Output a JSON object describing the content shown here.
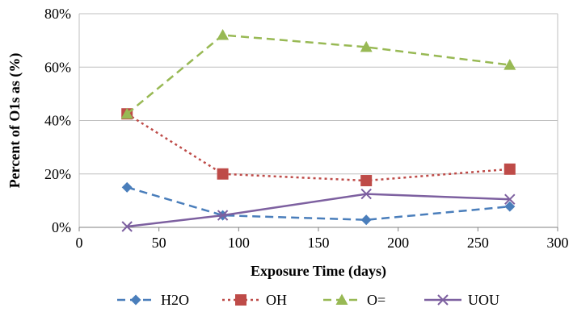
{
  "chart_data": {
    "type": "line",
    "title": "",
    "xlabel": "Exposure Time (days)",
    "ylabel": "Percent of O1s as (%)",
    "xlim": [
      0,
      300
    ],
    "ylim": [
      0,
      80
    ],
    "x_ticks": [
      0,
      50,
      100,
      150,
      200,
      250,
      300
    ],
    "x_tick_labels": [
      "0",
      "50",
      "100",
      "150",
      "200",
      "250",
      "300"
    ],
    "y_ticks": [
      0,
      20,
      40,
      60,
      80
    ],
    "y_tick_labels": [
      "0%",
      "20%",
      "40%",
      "60%",
      "80%"
    ],
    "grid": "horizontal",
    "legend_position": "bottom",
    "x": [
      30,
      90,
      180,
      270
    ],
    "series": [
      {
        "name": "H2O",
        "values": [
          15,
          4.5,
          2.8,
          7.8
        ],
        "color": "#4a7ebb",
        "dash": "dashed",
        "marker": "diamond"
      },
      {
        "name": "OH",
        "values": [
          42.5,
          20,
          17.5,
          21.8
        ],
        "color": "#be4b48",
        "dash": "dotted",
        "marker": "square"
      },
      {
        "name": "O=",
        "values": [
          42.5,
          72,
          67.5,
          60.8
        ],
        "color": "#98b954",
        "dash": "dashed",
        "marker": "triangle"
      },
      {
        "name": "UOU",
        "values": [
          0.3,
          4.5,
          12.5,
          10.5
        ],
        "color": "#7d60a0",
        "dash": "solid",
        "marker": "x"
      }
    ]
  }
}
